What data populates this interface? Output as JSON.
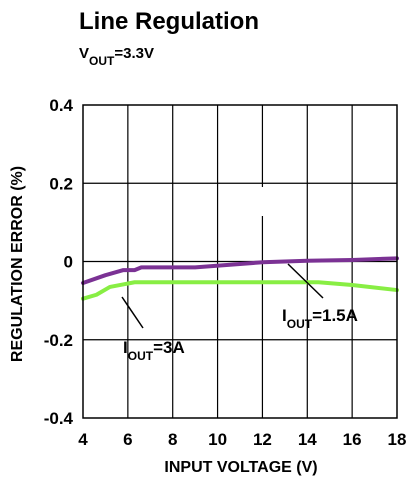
{
  "chart_data": {
    "type": "line",
    "title": "Line Regulation",
    "subtitle": {
      "main": "V",
      "sub": "OUT",
      "rest": "=3.3V"
    },
    "xlabel": "INPUT VOLTAGE (V)",
    "ylabel": "REGULATION ERROR (%)",
    "xlim": [
      4,
      18
    ],
    "ylim": [
      -0.4,
      0.4
    ],
    "xticks": [
      4,
      6,
      8,
      10,
      12,
      14,
      16,
      18
    ],
    "yticks": [
      0.4,
      0.2,
      0,
      -0.2,
      -0.4
    ],
    "xtick_labels": [
      "4",
      "6",
      "8",
      "10",
      "12",
      "14",
      "16",
      "18"
    ],
    "ytick_labels": [
      "0.4",
      "0.2",
      "0",
      "-0.2",
      "-0.4"
    ],
    "grid": true,
    "series": [
      {
        "color": "#7b3294",
        "points": [
          [
            4.0,
            -0.055
          ],
          [
            5.0,
            -0.035
          ],
          [
            5.8,
            -0.022
          ],
          [
            6.3,
            -0.022
          ],
          [
            6.6,
            -0.015
          ],
          [
            9.0,
            -0.015
          ],
          [
            12.0,
            -0.002
          ],
          [
            14.0,
            0.002
          ],
          [
            16.0,
            0.004
          ],
          [
            18.0,
            0.008
          ]
        ]
      },
      {
        "color": "#88ee44",
        "points": [
          [
            4.0,
            -0.095
          ],
          [
            4.6,
            -0.085
          ],
          [
            5.2,
            -0.065
          ],
          [
            6.3,
            -0.053
          ],
          [
            9.0,
            -0.053
          ],
          [
            12.0,
            -0.053
          ],
          [
            14.5,
            -0.053
          ],
          [
            16.0,
            -0.06
          ],
          [
            18.0,
            -0.073
          ]
        ]
      }
    ],
    "annotations": [
      {
        "main": "I",
        "sub": "OUT",
        "rest": "=1.5A"
      },
      {
        "main": "I",
        "sub": "OUT",
        "rest": "=3A"
      }
    ]
  }
}
